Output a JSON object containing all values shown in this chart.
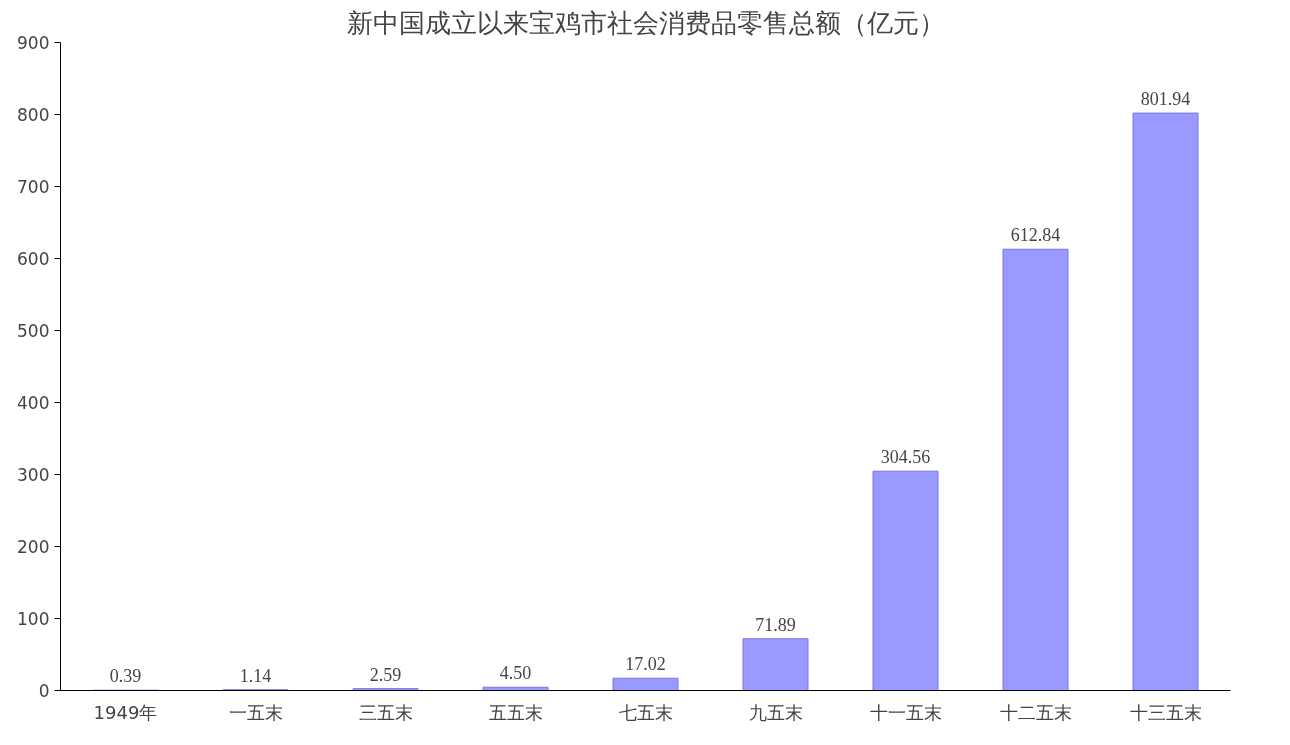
{
  "chart_data": {
    "type": "bar",
    "title": "新中国成立以来宝鸡市社会消费品零售总额（亿元）",
    "categories": [
      "1949年",
      "一五末",
      "三五末",
      "五五末",
      "七五末",
      "九五末",
      "十一五末",
      "十二五末",
      "十三五末"
    ],
    "values": [
      0.39,
      1.14,
      2.59,
      4.5,
      17.02,
      71.89,
      304.56,
      612.84,
      801.94
    ],
    "value_labels": [
      "0.39",
      "1.14",
      "2.59",
      "4.50",
      "17.02",
      "71.89",
      "304.56",
      "612.84",
      "801.94"
    ],
    "color": "#9999ff",
    "ylim": [
      0,
      900
    ],
    "yticks": [
      0,
      100,
      200,
      300,
      400,
      500,
      600,
      700,
      800,
      900
    ],
    "grid": false
  }
}
